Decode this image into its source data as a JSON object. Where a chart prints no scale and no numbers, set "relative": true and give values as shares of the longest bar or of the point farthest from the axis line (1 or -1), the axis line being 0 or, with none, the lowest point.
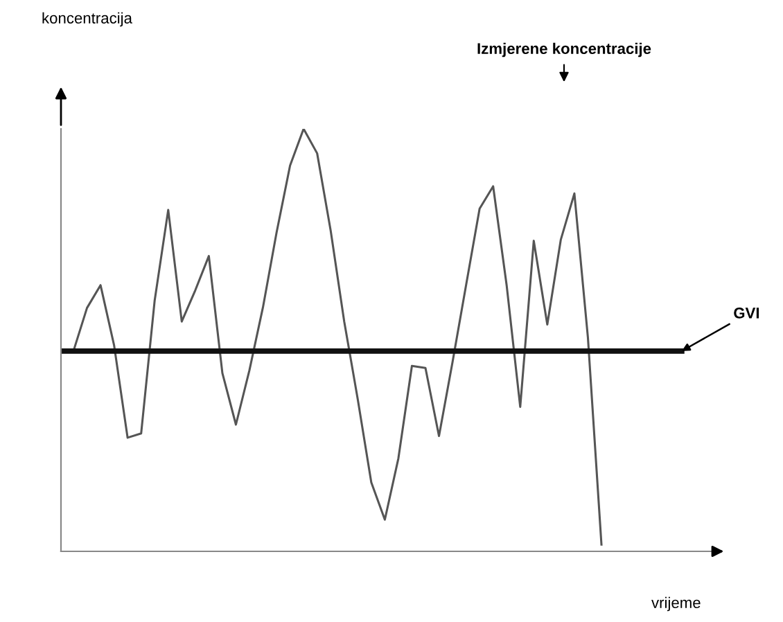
{
  "chart_data": {
    "type": "line",
    "relative": true,
    "categories": [
      null,
      null,
      null,
      null,
      null,
      null,
      null,
      null,
      null,
      null,
      null,
      null,
      null,
      null,
      null,
      null,
      null,
      null,
      null,
      null,
      null,
      null,
      null,
      null,
      null,
      null,
      null,
      null,
      null,
      null,
      null,
      null,
      null,
      null,
      null,
      null,
      null,
      null,
      null,
      null
    ],
    "series": [
      {
        "color": "#555555",
        "values": [
          0.474,
          0.576,
          0.63,
          0.488,
          0.269,
          0.279,
          0.594,
          0.808,
          0.544,
          0.618,
          0.699,
          0.422,
          0.3,
          0.429,
          0.578,
          0.754,
          0.913,
          1.0,
          0.942,
          0.759,
          0.544,
          0.36,
          0.163,
          0.075,
          0.22,
          0.439,
          0.434,
          0.273,
          0.448,
          0.63,
          0.811,
          0.864,
          0.629,
          0.342,
          0.735,
          0.537,
          0.738,
          0.847,
          0.506,
          0.016
        ]
      }
    ],
    "ref_lines": [
      {
        "axis": "y",
        "value": 0.474,
        "label": "GVI",
        "color": "#111111"
      }
    ],
    "annotations": [
      "Izmjerene koncentracije",
      "koncentracija",
      "vrijeme"
    ],
    "legend": false,
    "marker": "none",
    "line_style": "solid"
  }
}
